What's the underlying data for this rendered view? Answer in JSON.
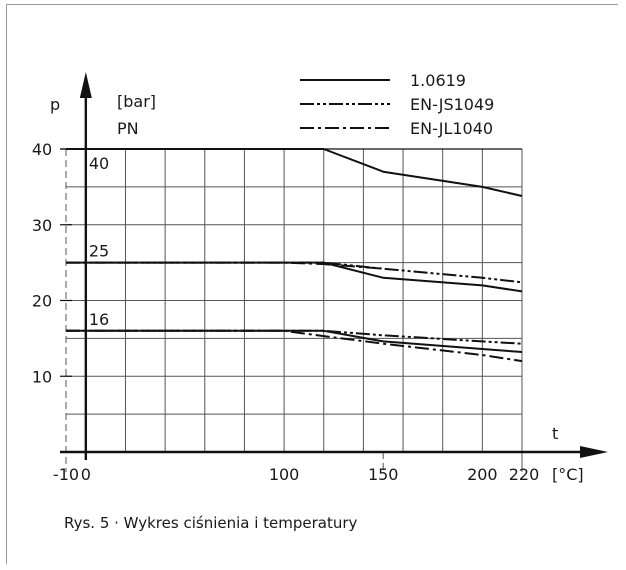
{
  "chart_data": {
    "type": "line",
    "title": "",
    "caption": "Rys. 5 · Wykres ciśnienia i temperatury",
    "xlabel": "t",
    "x_unit": "[°C]",
    "ylabel": "p",
    "y_unit": "[bar]",
    "y_secondary_label": "PN",
    "xlim": [
      -10,
      220
    ],
    "ylim": [
      0,
      40
    ],
    "x_ticks": [
      -10,
      0,
      100,
      150,
      200,
      220
    ],
    "y_ticks": [
      10,
      20,
      30,
      40
    ],
    "pn_levels": [
      {
        "label": "40",
        "value": 40
      },
      {
        "label": "25",
        "value": 25
      },
      {
        "label": "16",
        "value": 16
      }
    ],
    "grid": true,
    "legend": {
      "placement": "top-right",
      "entries": [
        {
          "name": "1.0619",
          "style": "solid"
        },
        {
          "name": "EN-JS1049",
          "style": "dash-dot-dot"
        },
        {
          "name": "EN-JL1040",
          "style": "dash-dot"
        }
      ]
    },
    "series": [
      {
        "name": "1.0619",
        "pn": "40",
        "style": "solid",
        "x": [
          -10,
          120,
          150,
          200,
          220
        ],
        "y": [
          40,
          40,
          37,
          35,
          33.8
        ]
      },
      {
        "name": "1.0619",
        "pn": "25",
        "style": "solid",
        "x": [
          -10,
          120,
          150,
          200,
          220
        ],
        "y": [
          25,
          25,
          23,
          22,
          21.2
        ]
      },
      {
        "name": "EN-JS1049",
        "pn": "25",
        "style": "dash-dot-dot",
        "x": [
          -10,
          120,
          150,
          200,
          220
        ],
        "y": [
          25,
          25,
          24.2,
          23,
          22.4
        ]
      },
      {
        "name": "EN-JL1040",
        "pn": "25",
        "style": "dash-dot",
        "x": [
          -10,
          100,
          120,
          150
        ],
        "y": [
          25,
          25,
          24.8,
          24.2
        ]
      },
      {
        "name": "1.0619",
        "pn": "16",
        "style": "solid",
        "x": [
          -10,
          120,
          150,
          200,
          220
        ],
        "y": [
          16,
          16,
          14.6,
          13.6,
          13.2
        ]
      },
      {
        "name": "EN-JS1049",
        "pn": "16",
        "style": "dash-dot-dot",
        "x": [
          -10,
          120,
          150,
          200,
          220
        ],
        "y": [
          16,
          16,
          15.4,
          14.6,
          14.3
        ]
      },
      {
        "name": "EN-JL1040",
        "pn": "16",
        "style": "dash-dot",
        "x": [
          -10,
          100,
          120,
          150,
          200,
          220
        ],
        "y": [
          16,
          16,
          15.3,
          14.3,
          12.8,
          12
        ]
      }
    ]
  }
}
